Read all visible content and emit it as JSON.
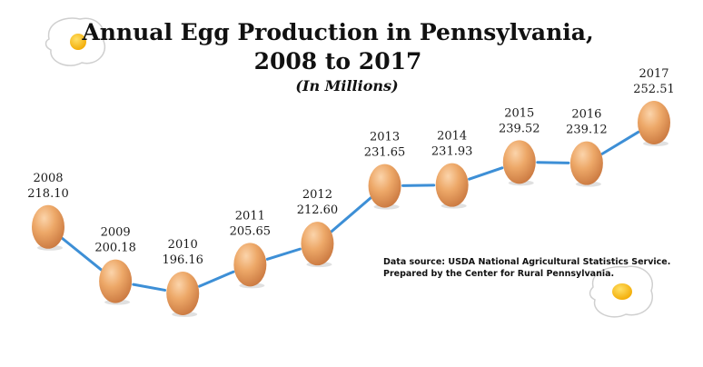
{
  "title_line1": "Annual Egg Production in Pennsylvania,",
  "title_line2": "2008 to 2017",
  "subtitle": "(In Millions)",
  "source_line1": "Data source: USDA National Agricultural Statistics Service.",
  "source_line2": "Prepared by the Center for Rural Pennsylvania.",
  "colors": {
    "line": "#3d8fd6",
    "egg": "#e8a36a",
    "yolk": "#f7b81c",
    "text": "#111111"
  },
  "icons": [
    "fried-egg-icon",
    "egg-icon"
  ],
  "chart_data": {
    "type": "line",
    "title": "Annual Egg Production in Pennsylvania, 2008 to 2017",
    "subtitle": "(In Millions)",
    "marker": "egg",
    "categories": [
      "2008",
      "2009",
      "2010",
      "2011",
      "2012",
      "2013",
      "2014",
      "2015",
      "2016",
      "2017"
    ],
    "x": [
      2008,
      2009,
      2010,
      2011,
      2012,
      2013,
      2014,
      2015,
      2016,
      2017
    ],
    "values": [
      218.1,
      200.18,
      196.16,
      205.65,
      212.6,
      231.65,
      231.93,
      239.52,
      239.12,
      252.51
    ],
    "value_labels": [
      "218.10",
      "200.18",
      "196.16",
      "205.65",
      "212.60",
      "231.65",
      "231.93",
      "239.52",
      "239.12",
      "252.51"
    ],
    "xlabel": "",
    "ylabel": "",
    "grid": false,
    "axes_visible": false
  }
}
